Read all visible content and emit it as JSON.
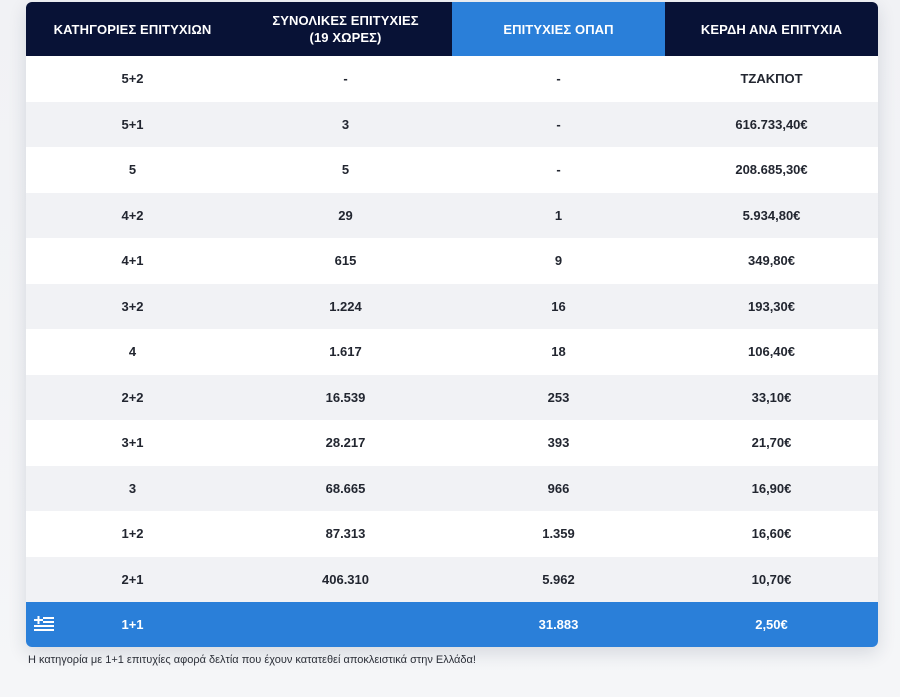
{
  "table": {
    "headers": {
      "category": "ΚΑΤΗΓΟΡΙΕΣ ΕΠΙΤΥΧΙΩΝ",
      "total_line1": "ΣΥΝΟΛΙΚΕΣ ΕΠΙΤΥΧΙΕΣ",
      "total_line2": "(19 ΧΩΡΕΣ)",
      "opap": "ΕΠΙΤΥΧΙΕΣ ΟΠΑΠ",
      "prize": "ΚΕΡΔΗ ΑΝΑ ΕΠΙΤΥΧΙΑ"
    },
    "rows": [
      {
        "category": "5+2",
        "total": "-",
        "opap": "-",
        "prize": "ΤΖΑΚΠΟΤ"
      },
      {
        "category": "5+1",
        "total": "3",
        "opap": "-",
        "prize": "616.733,40€"
      },
      {
        "category": "5",
        "total": "5",
        "opap": "-",
        "prize": "208.685,30€"
      },
      {
        "category": "4+2",
        "total": "29",
        "opap": "1",
        "prize": "5.934,80€"
      },
      {
        "category": "4+1",
        "total": "615",
        "opap": "9",
        "prize": "349,80€"
      },
      {
        "category": "3+2",
        "total": "1.224",
        "opap": "16",
        "prize": "193,30€"
      },
      {
        "category": "4",
        "total": "1.617",
        "opap": "18",
        "prize": "106,40€"
      },
      {
        "category": "2+2",
        "total": "16.539",
        "opap": "253",
        "prize": "33,10€"
      },
      {
        "category": "3+1",
        "total": "28.217",
        "opap": "393",
        "prize": "21,70€"
      },
      {
        "category": "3",
        "total": "68.665",
        "opap": "966",
        "prize": "16,90€"
      },
      {
        "category": "1+2",
        "total": "87.313",
        "opap": "1.359",
        "prize": "16,60€"
      },
      {
        "category": "2+1",
        "total": "406.310",
        "opap": "5.962",
        "prize": "10,70€"
      }
    ],
    "greek_row": {
      "icon": "greek-flag-icon",
      "category": "1+1",
      "total": "",
      "opap": "31.883",
      "prize": "2,50€"
    }
  },
  "note": "Η κατηγορία με 1+1 επιτυχίες αφορά δελτία που έχουν κατατεθεί αποκλειστικά στην Ελλάδα!",
  "colors": {
    "header_dark": "#081236",
    "accent_blue": "#2a7fd9",
    "row_alt": "#f1f2f5"
  }
}
